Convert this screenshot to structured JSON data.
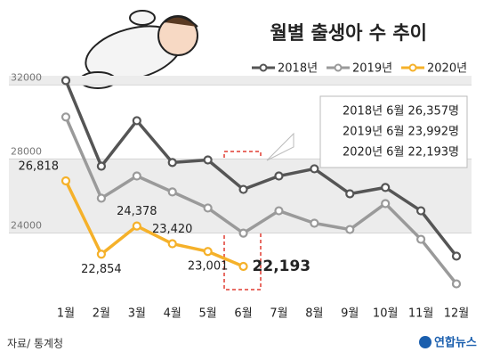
{
  "chart_data": {
    "type": "line",
    "title": "월별 출생아 수 추이",
    "categories": [
      "1월",
      "2월",
      "3월",
      "4월",
      "5월",
      "6월",
      "7월",
      "8월",
      "9월",
      "10월",
      "11월",
      "12월"
    ],
    "series": [
      {
        "name": "2018년",
        "color": "#555555",
        "values": [
          32240,
          27610,
          30070,
          27810,
          27950,
          26357,
          27080,
          27470,
          26120,
          26460,
          25200,
          22750
        ]
      },
      {
        "name": "2019년",
        "color": "#9a9a9a",
        "values": [
          30270,
          25880,
          27080,
          26220,
          25350,
          23992,
          25200,
          24530,
          24190,
          25590,
          23660,
          21250
        ]
      },
      {
        "name": "2020년",
        "color": "#f5b12a",
        "values": [
          26818,
          22854,
          24378,
          23420,
          23001,
          22193,
          null,
          null,
          null,
          null,
          null,
          null
        ],
        "value_labels": [
          "26,818",
          "22,854",
          "24,378",
          "23,420",
          "23,001",
          "22,193",
          null,
          null,
          null,
          null,
          null,
          null
        ]
      }
    ],
    "ylim": [
      20700,
      32500
    ],
    "yticks": [
      24000,
      28000,
      32000
    ],
    "annotations": [
      "2018년 6월 26,357명",
      "2019년 6월 23,992명",
      "2020년 6월 22,193명"
    ],
    "source": "자료/ 통계청",
    "logo": "연합뉴스"
  }
}
